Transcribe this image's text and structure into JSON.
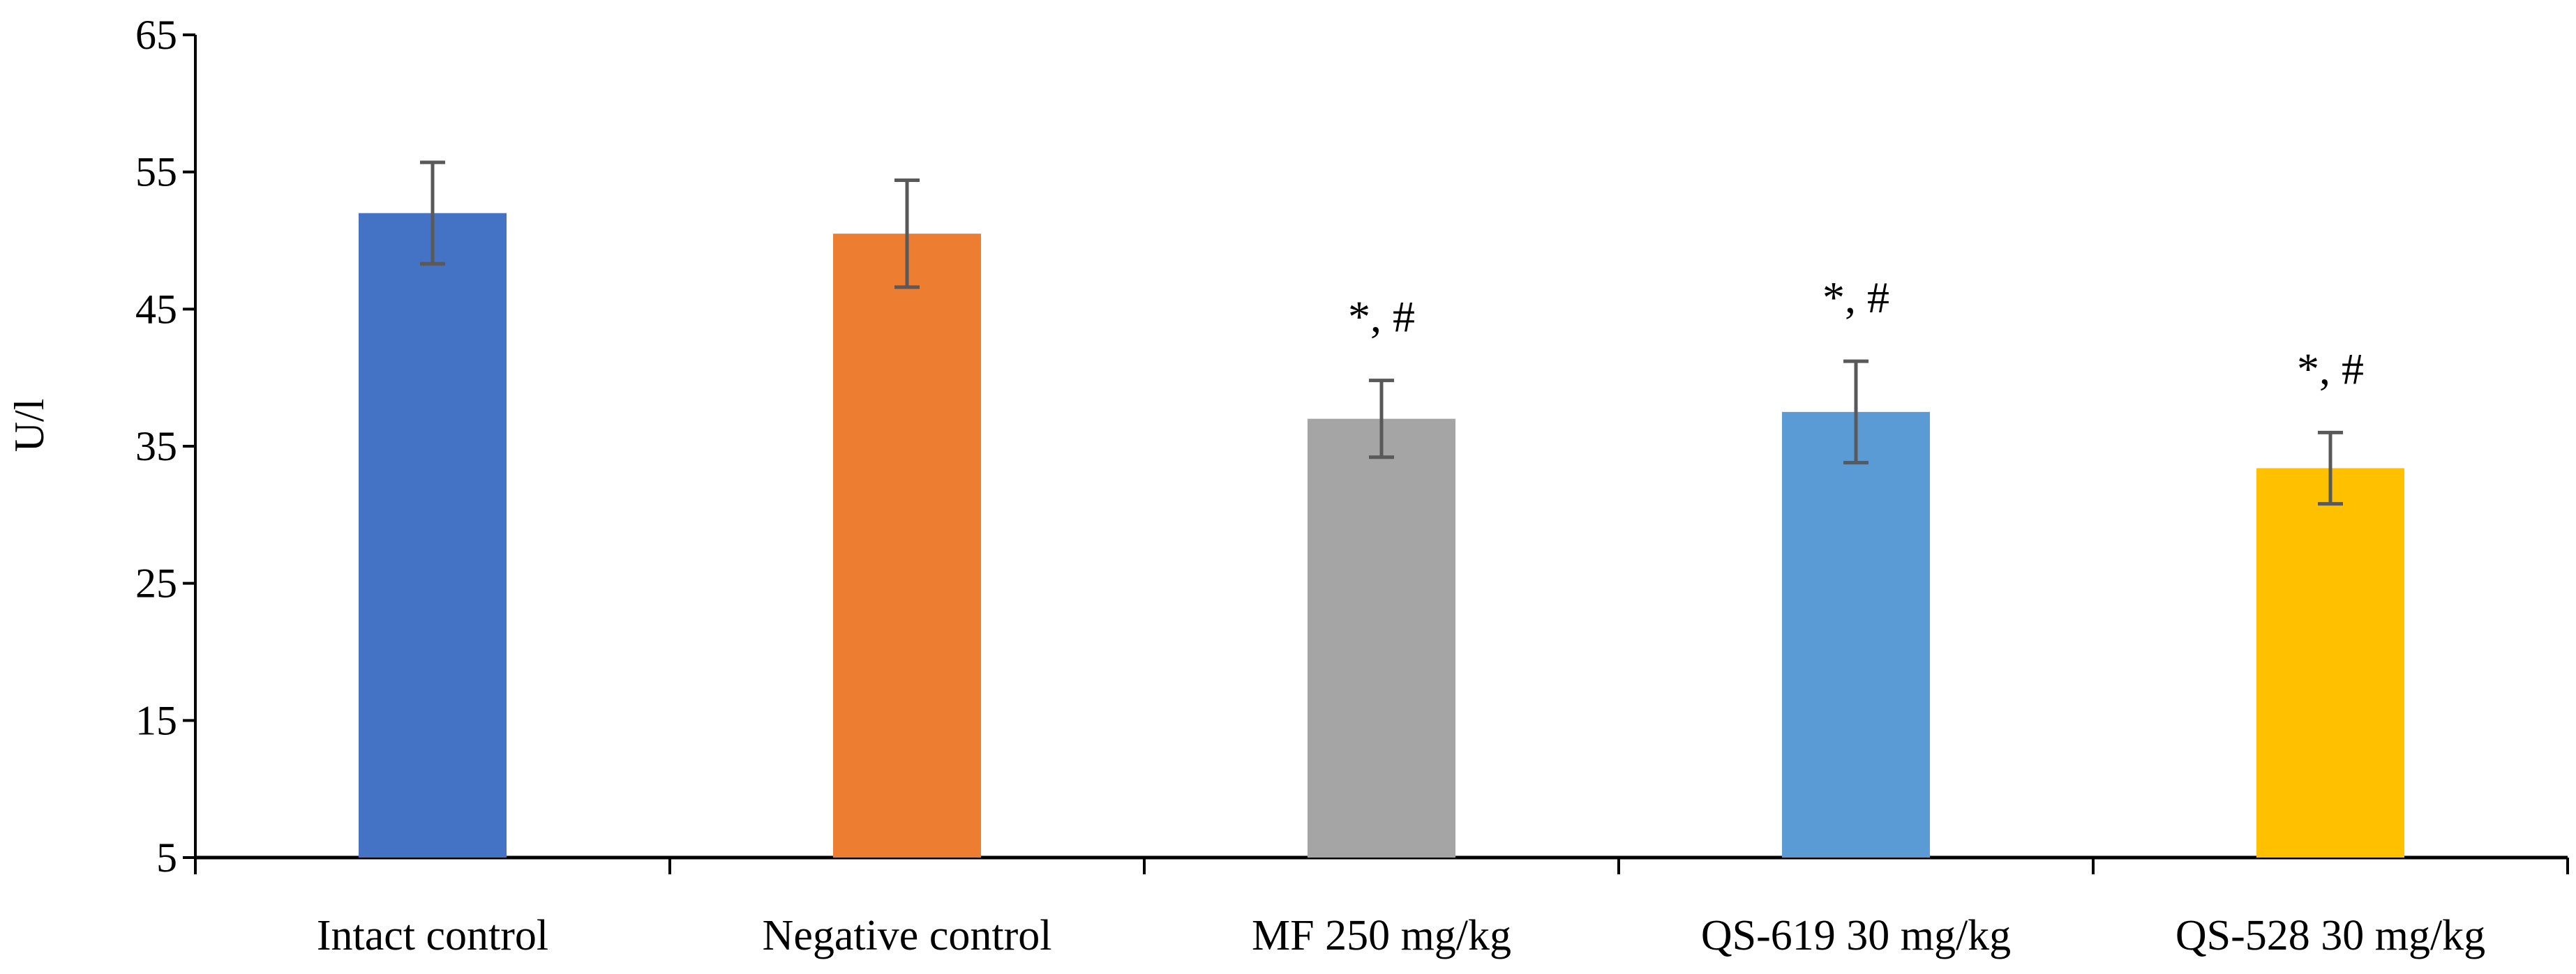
{
  "chart_data": {
    "type": "bar",
    "title": "",
    "xlabel": "",
    "ylabel": "U/l",
    "ylim": [
      5,
      65
    ],
    "yticks": [
      5,
      15,
      25,
      35,
      45,
      55,
      65
    ],
    "grid": false,
    "legend": "none",
    "categories": [
      "Intact control",
      "Negative control",
      "MF 250 mg/kg",
      "QS-619 30 mg/kg",
      "QS-528 30 mg/kg"
    ],
    "values": [
      52,
      50.5,
      37,
      37.5,
      33.4
    ],
    "error_bars": [
      3.7,
      3.9,
      2.8,
      3.7,
      2.6
    ],
    "colors": [
      "#4472C4",
      "#ED7D31",
      "#A5A5A5",
      "#5B9BD5",
      "#FFC000"
    ],
    "annotations": [
      "",
      "",
      "*, #",
      "*, #",
      "*, #"
    ],
    "error_bar_color": "#595959"
  }
}
